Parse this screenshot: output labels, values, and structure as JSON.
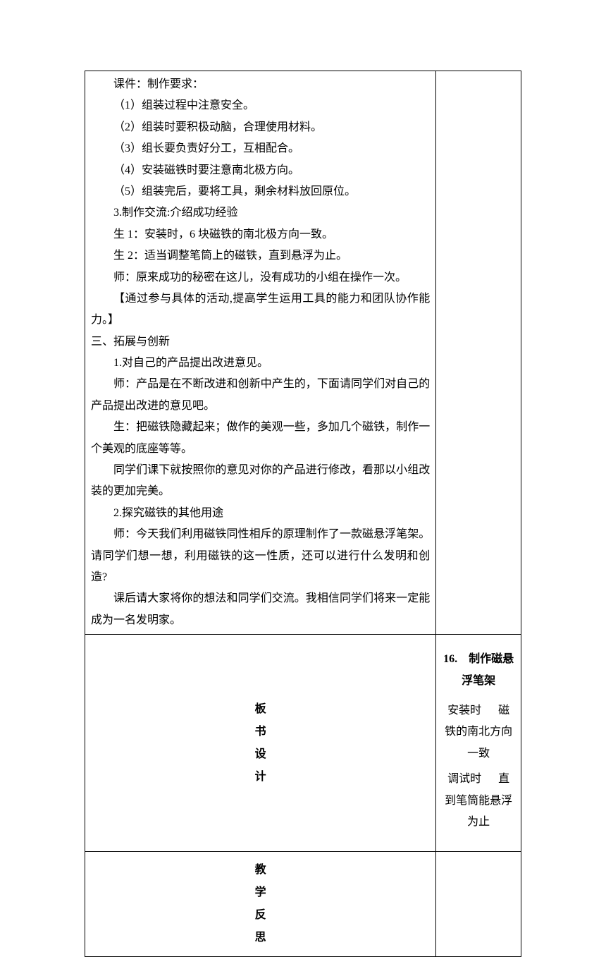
{
  "mainContent": {
    "line1": "课件：制作要求：",
    "line2": "（1）组装过程中注意安全。",
    "line3": "（2）组装时要积极动脑，合理使用材料。",
    "line4": "（3）组长要负责好分工，互相配合。",
    "line5": "（4）安装磁铁时要注意南北极方向。",
    "line6": "（5）组装完后，要将工具，剩余材料放回原位。",
    "line7": "3.制作交流:介绍成功经验",
    "line8": "生 1：安装时，6 块磁铁的南北极方向一致。",
    "line9": "生 2：适当调整笔筒上的磁铁，直到悬浮为止。",
    "line10": "师：原来成功的秘密在这儿，没有成功的小组在操作一次。",
    "line11": "【通过参与具体的活动,提高学生运用工具的能力和团队协作能力。】",
    "sectionTitle": "三、拓展与创新",
    "line12": "1.对自己的产品提出改进意见。",
    "line13": "师：产品是在不断改进和创新中产生的，下面请同学们对自己的产品提出改进的意见吧。",
    "line14": "生：把磁铁隐藏起来；做作的美观一些，多加几个磁铁，制作一个美观的底座等等。",
    "line15": "同学们课下就按照你的意见对你的产品进行修改，看那以小组改装的更加完美。",
    "line16": "2.探究磁铁的其他用途",
    "line17": "师：今天我们利用磁铁同性相斥的原理制作了一款磁悬浮笔架。请同学们想一想，利用磁铁的这一性质，还可以进行什么发明和创造?",
    "line18": "课后请大家将你的想法和同学们交流。我相信同学们将来一定能成为一名发明家。"
  },
  "boardDesign": {
    "label1": "板",
    "label2": "书",
    "label3": "设",
    "label4": "计",
    "title": "16. 制作磁悬浮笔架",
    "line1_a": "安装时",
    "line1_b": "磁铁的南北方向一致",
    "line2_a": "调试时",
    "line2_b": "直到笔筒能悬浮为止"
  },
  "reflection": {
    "label1": "教",
    "label2": "学",
    "label3": "反",
    "label4": "思"
  }
}
